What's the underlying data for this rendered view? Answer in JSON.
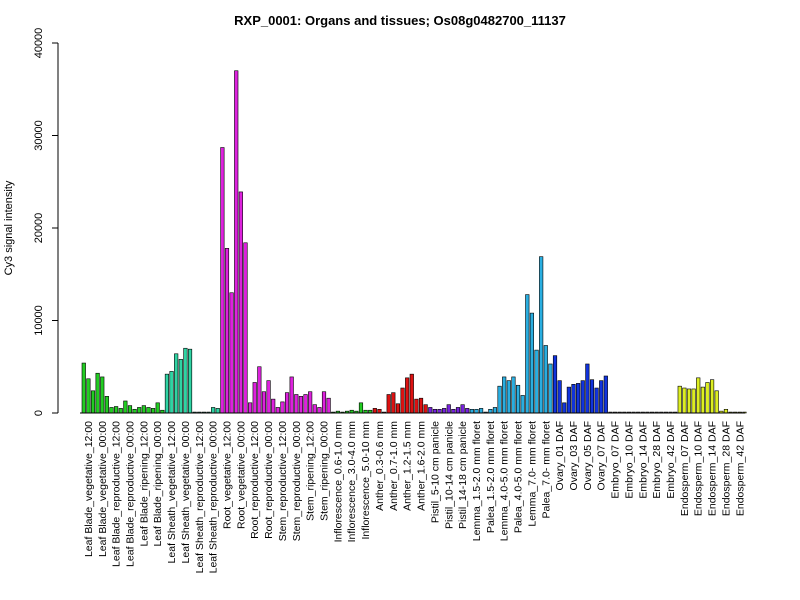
{
  "chart_data": {
    "type": "bar",
    "title": "RXP_0001: Organs and tissues; Os08g0482700_11137",
    "xlabel": "",
    "ylabel": "Cy3 signal intensity",
    "ylim": [
      0,
      40000
    ],
    "yticks": [
      "0",
      "10000",
      "20000",
      "30000",
      "40000"
    ],
    "grid": false,
    "legend": "none",
    "categories": [
      "Leaf Blade_vegetative_12:00",
      "Leaf Blade_vegetative_00:00",
      "Leaf Blade_reproductive_12:00",
      "Leaf Blade_reproductive_00:00",
      "Leaf Blade_ripening_12:00",
      "Leaf Blade_ripening_00:00",
      "Leaf Sheath_vegetative_12:00",
      "Leaf Sheath_vegetative_00:00",
      "Leaf Sheath_reproductive_12:00",
      "Leaf Sheath_reproductive_00:00",
      "Root_vegetative_12:00",
      "Root_vegetative_00:00",
      "Root_reproductive_12:00",
      "Root_reproductive_00:00",
      "Stem_reproductive_12:00",
      "Stem_reproductive_00:00",
      "Stem_ripening_12:00",
      "Stem_ripening_00:00",
      "Inflorescence_0.6-1.0 mm",
      "Inflorescence_3.0-4.0 mm",
      "Inflorescence_5.0-10 mm",
      "Anther_0.3-0.6 mm",
      "Anther_0.7-1.0 mm",
      "Anther_1.2-1.5 mm",
      "Anther_1.6-2.0 mm",
      "Pistil_5-10 cm panicle",
      "Pistil_10-14 cm panicle",
      "Pistil_14-18 cm panicle",
      "Lemma_1.5-2.0 mm floret",
      "Palea_1.5-2.0 mm floret",
      "Lemma_4.0-5.0 mm floret",
      "Palea_4.0-5.0 mm floret",
      "Lemma_7.0- mm floret",
      "Palea_7.0- mm floret",
      "Ovary_01 DAF",
      "Ovary_03 DAF",
      "Ovary_05 DAF",
      "Ovary_07 DAF",
      "Embryo_07 DAF",
      "Embryo_10 DAF",
      "Embryo_14 DAF",
      "Embryo_28 DAF",
      "Embryo_42 DAF",
      "Endosperm_07 DAF",
      "Endosperm_10 DAF",
      "Endosperm_14 DAF",
      "Endosperm_28 DAF",
      "Endosperm_42 DAF"
    ],
    "series": [
      {
        "values": [
          [
            5400,
            3700,
            2400
          ],
          [
            4300,
            3900,
            1800
          ],
          [
            600,
            700,
            500
          ],
          [
            1300,
            800,
            400
          ],
          [
            600,
            800,
            600
          ],
          [
            500,
            1100,
            300
          ],
          [
            4200,
            4500,
            6400
          ],
          [
            5800,
            7000,
            6900
          ],
          [
            100,
            100,
            100
          ],
          [
            100,
            600,
            500
          ],
          [
            28700,
            17800,
            13000
          ],
          [
            37000,
            23900,
            18400
          ],
          [
            1100,
            3300,
            5000
          ],
          [
            2300,
            3500,
            1500
          ],
          [
            600,
            1200,
            2200
          ],
          [
            3900,
            2000,
            1800
          ],
          [
            2000,
            2300,
            900
          ],
          [
            600,
            2300,
            1600
          ],
          [
            100,
            200,
            100
          ],
          [
            200,
            300,
            200
          ],
          [
            1100,
            300,
            300
          ],
          [
            500,
            400,
            100
          ],
          [
            2000,
            2200,
            1000
          ],
          [
            2700,
            3800,
            4200
          ],
          [
            1500,
            1600,
            900
          ],
          [
            600,
            400,
            400
          ],
          [
            500,
            900,
            400
          ],
          [
            600,
            900,
            500
          ],
          [
            400,
            400,
            500
          ],
          [
            100,
            400,
            600
          ],
          [
            2900,
            3900,
            3500
          ],
          [
            3900,
            3000,
            1900
          ],
          [
            12800,
            10800,
            6800
          ],
          [
            16900,
            7300,
            5300
          ],
          [
            6200,
            3500,
            1100
          ],
          [
            2800,
            3100,
            3200
          ],
          [
            3500,
            5300,
            3600
          ],
          [
            2700,
            3500,
            4000
          ],
          [
            100,
            100,
            100
          ],
          [
            100,
            100,
            100
          ],
          [
            100,
            100,
            100
          ],
          [
            100,
            100,
            100
          ],
          [
            100,
            100,
            100
          ],
          [
            2900,
            2700,
            2600
          ],
          [
            2600,
            3800,
            2800
          ],
          [
            3300,
            3600,
            2400
          ],
          [
            200,
            400,
            100
          ],
          [
            100,
            100,
            100
          ]
        ]
      }
    ],
    "group_colors": [
      "#22cc22",
      "#22cc22",
      "#22cc22",
      "#22cc22",
      "#22cc22",
      "#22cc22",
      "#2fd3a3",
      "#2fd3a3",
      "#2fd3a3",
      "#2fd3a3",
      "#dd22dd",
      "#dd22dd",
      "#dd22dd",
      "#dd22dd",
      "#dd22dd",
      "#dd22dd",
      "#dd22dd",
      "#dd22dd",
      "#22cc22",
      "#22cc22",
      "#22cc22",
      "#dd1111",
      "#dd1111",
      "#dd1111",
      "#dd1111",
      "#7722dd",
      "#7722dd",
      "#7722dd",
      "#2aaee0",
      "#2aaee0",
      "#2aaee0",
      "#2aaee0",
      "#2aaee0",
      "#2aaee0",
      "#1133dd",
      "#1133dd",
      "#1133dd",
      "#1133dd",
      "#777777",
      "#777777",
      "#777777",
      "#777777",
      "#777777",
      "#ddee22",
      "#ddee22",
      "#ddee22",
      "#ddee22",
      "#ddee22"
    ]
  }
}
